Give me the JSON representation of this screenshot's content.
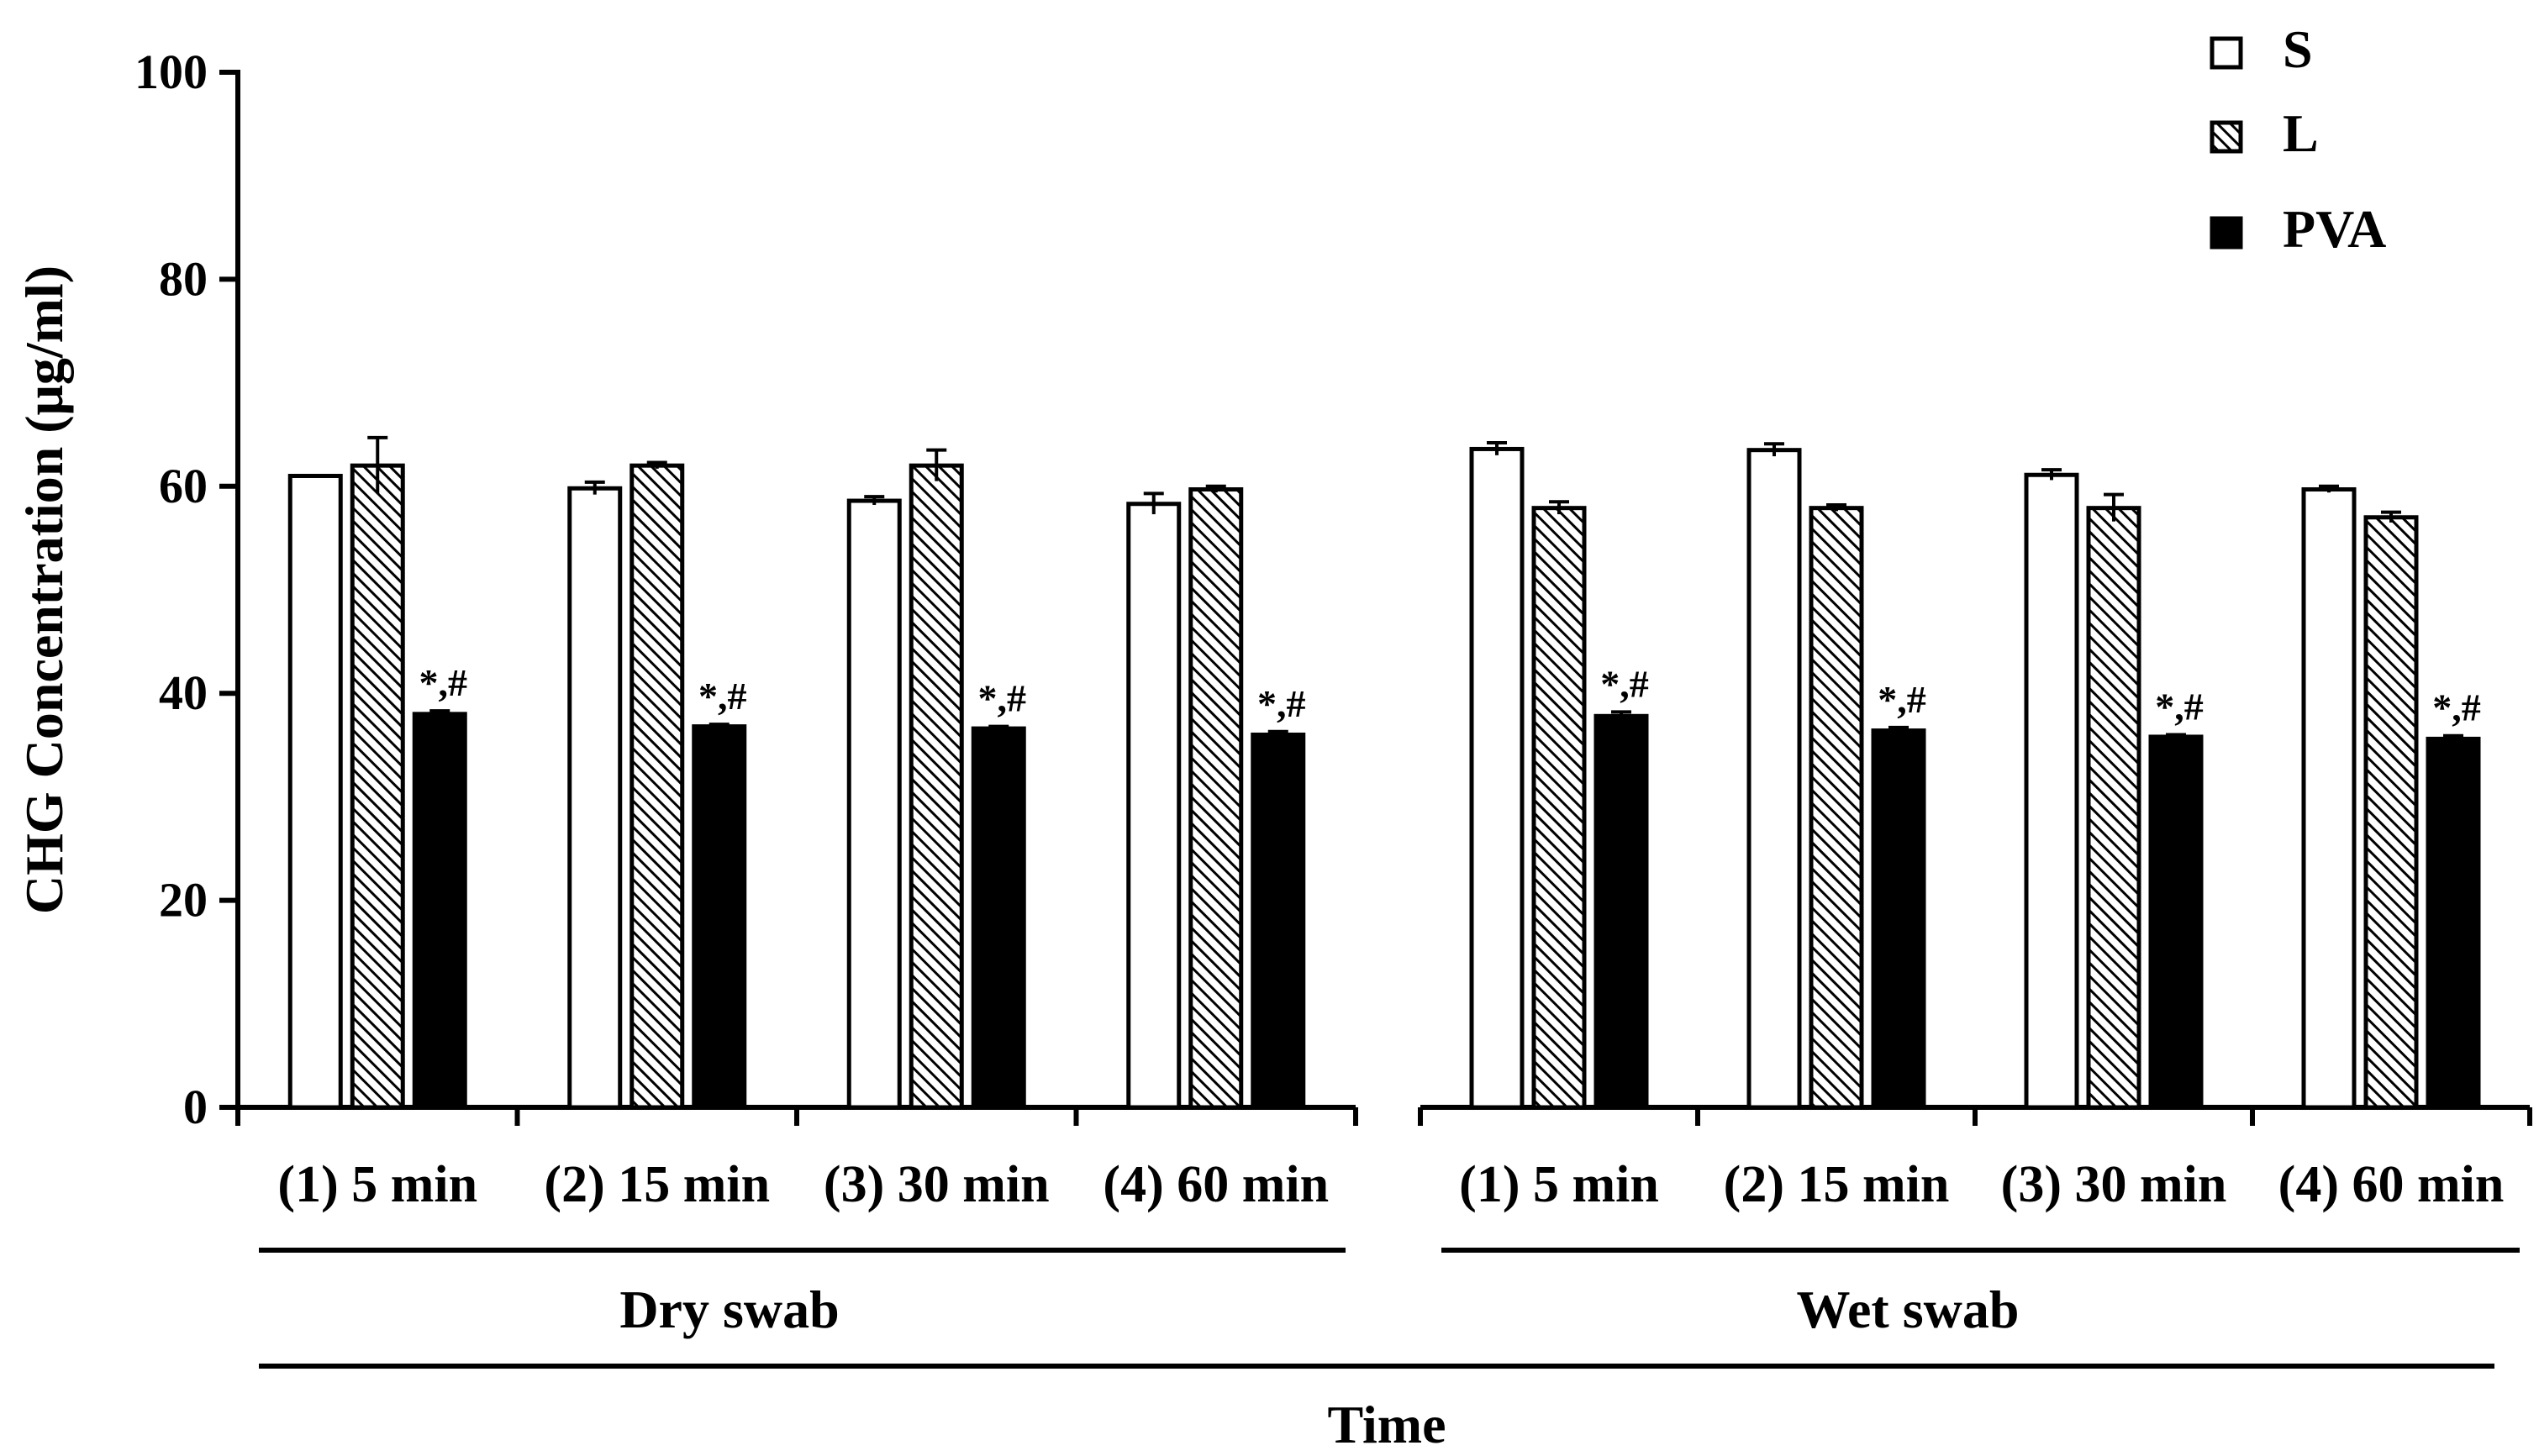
{
  "chart_data": {
    "type": "bar",
    "xlabel": "Time",
    "ylabel": "CHG Concentration (μg/ml)",
    "ylim": [
      0,
      100
    ],
    "yticks": [
      0,
      20,
      40,
      60,
      80,
      100
    ],
    "groups": [
      {
        "label": "Dry swab",
        "categories": [
          "(1) 5 min",
          "(2) 15 min",
          "(3) 30 min",
          "(4) 60 min"
        ],
        "series": [
          {
            "name": "S",
            "values": [
              61.0,
              59.8,
              58.6,
              58.3
            ],
            "errors": [
              0.0,
              0.6,
              0.4,
              1.0
            ]
          },
          {
            "name": "L",
            "values": [
              62.0,
              62.0,
              62.0,
              59.7
            ],
            "errors": [
              2.7,
              0.3,
              1.5,
              0.3
            ]
          },
          {
            "name": "PVA",
            "values": [
              38.0,
              36.8,
              36.6,
              36.0
            ],
            "errors": [
              0.3,
              0.2,
              0.2,
              0.3
            ]
          }
        ],
        "annotations": [
          "*,#",
          "*,#",
          "*,#",
          "*,#"
        ]
      },
      {
        "label": "Wet swab",
        "categories": [
          "(1) 5 min",
          "(2) 15 min",
          "(3) 30 min",
          "(4) 60 min"
        ],
        "series": [
          {
            "name": "S",
            "values": [
              63.6,
              63.5,
              61.1,
              59.7
            ],
            "errors": [
              0.6,
              0.6,
              0.5,
              0.3
            ]
          },
          {
            "name": "L",
            "values": [
              57.9,
              57.9,
              57.9,
              57.0
            ],
            "errors": [
              0.6,
              0.3,
              1.3,
              0.5
            ]
          },
          {
            "name": "PVA",
            "values": [
              37.8,
              36.4,
              35.8,
              35.6
            ],
            "errors": [
              0.4,
              0.3,
              0.2,
              0.3
            ]
          }
        ],
        "annotations": [
          "*,#",
          "*,#",
          "*,#",
          "*,#"
        ]
      }
    ],
    "legend": {
      "position": "top-right",
      "entries": [
        {
          "name": "S",
          "style": "white"
        },
        {
          "name": "L",
          "style": "hatched"
        },
        {
          "name": "PVA",
          "style": "black"
        }
      ]
    },
    "colors": {
      "S": "#ffffff",
      "L": "hatch",
      "PVA": "#000000",
      "stroke": "#000000"
    }
  }
}
